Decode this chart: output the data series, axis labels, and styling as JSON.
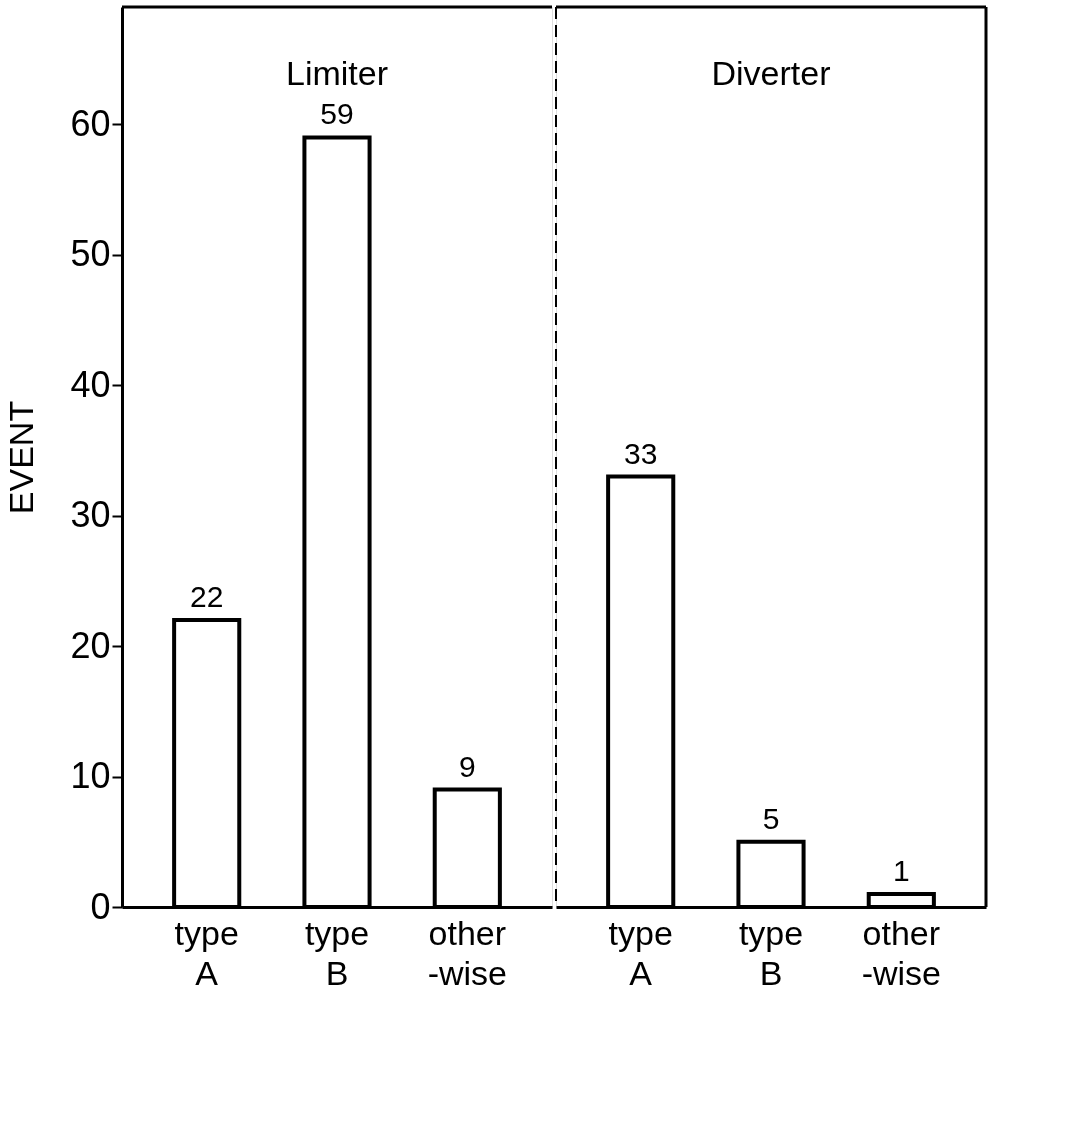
{
  "chart_data": [
    {
      "type": "bar",
      "title": "Limiter",
      "ylabel": "EVENT",
      "categories": [
        "type A",
        "type B",
        "other -wise"
      ],
      "values": [
        22,
        59,
        9
      ],
      "color": "#ffffff",
      "ylim": [
        0,
        69
      ],
      "yticks": [
        0,
        10,
        20,
        30,
        40,
        50,
        60
      ],
      "data_labels": true,
      "grid": false
    },
    {
      "type": "bar",
      "title": "Diverter",
      "categories": [
        "type A",
        "type B",
        "other -wise"
      ],
      "values": [
        33,
        5,
        1
      ],
      "color": "#ffffff",
      "ylim": [
        0,
        69
      ],
      "yticks": [
        0,
        10,
        20,
        30,
        40,
        50,
        60
      ],
      "data_labels": true,
      "grid": false,
      "tick_labels": "x"
    }
  ]
}
